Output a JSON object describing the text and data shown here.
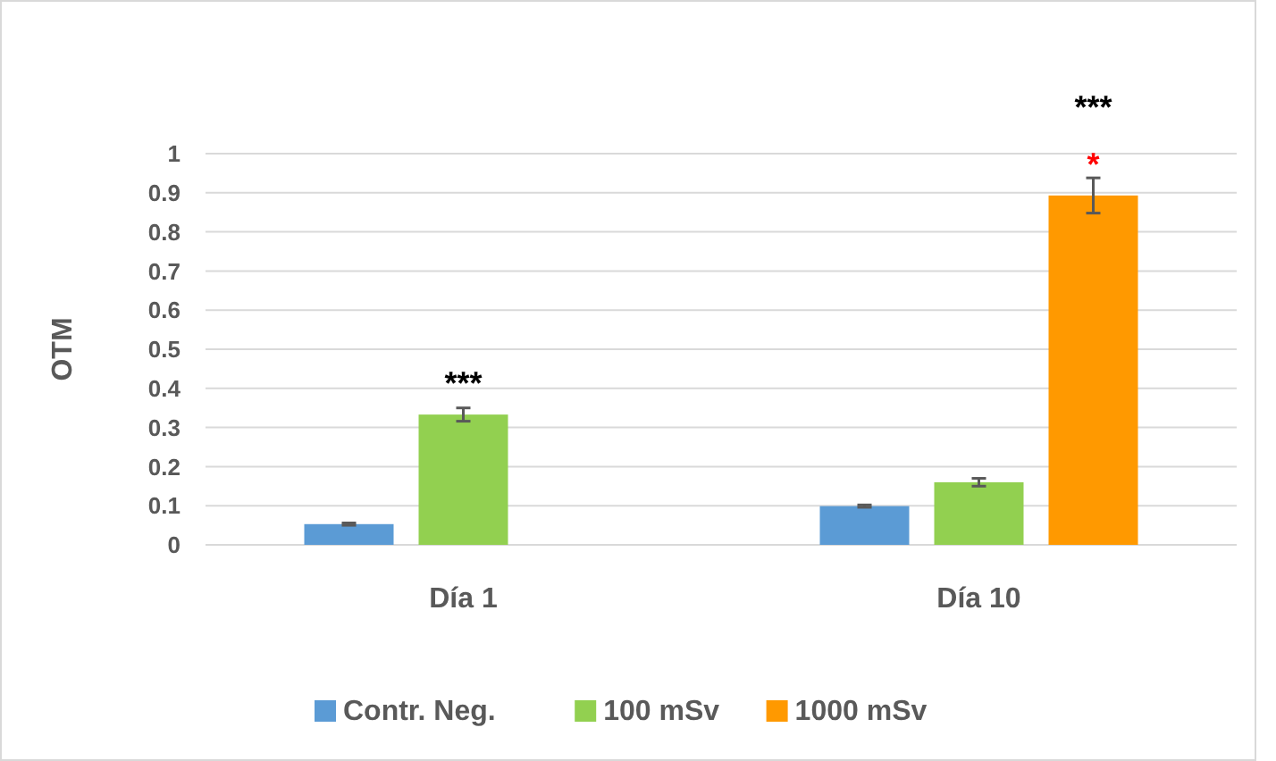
{
  "chart_data": {
    "type": "bar",
    "ylabel": "OTM",
    "categories": [
      "Día 1",
      "Día 10"
    ],
    "series": [
      {
        "name": "Contr. Neg.",
        "color": "#5b9bd5",
        "values": [
          0.053,
          0.099
        ],
        "errors": [
          0.003,
          0.003
        ]
      },
      {
        "name": "100 mSv",
        "color": "#92d050",
        "values": [
          0.333,
          0.16
        ],
        "errors": [
          0.017,
          0.01
        ]
      },
      {
        "name": "1000 mSv",
        "color": "#ff9900",
        "values": [
          null,
          0.893
        ],
        "errors": [
          null,
          0.045
        ]
      }
    ],
    "ylim": [
      0,
      1
    ],
    "yticks": [
      0,
      0.1,
      0.2,
      0.3,
      0.4,
      0.5,
      0.6,
      0.7,
      0.8,
      0.9,
      1
    ],
    "grid": "y",
    "legend": "bottom",
    "annotations": [
      "***",
      "***",
      "*"
    ]
  }
}
